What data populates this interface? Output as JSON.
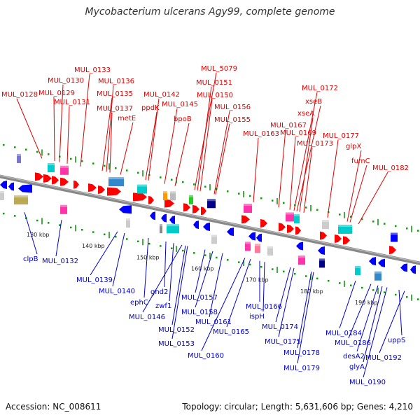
{
  "title": "Mycobacterium ulcerans Agy99, complete genome",
  "footer": {
    "accession": "Accession: NC_008611",
    "summary": "Topology: circular; Length: 5,631,606 bp; Genes: 4,210"
  },
  "colors": {
    "forward_label": "#dd0000",
    "reverse_label": "#0000cc",
    "backbone": "#888888",
    "tick": "#119911",
    "forward_arrow": "#ff0000",
    "reverse_arrow": "#0000ff"
  },
  "ticks": [
    "130 kbp",
    "140 kbp",
    "150 kbp",
    "160 kbp",
    "170 kbp",
    "180 kbp",
    "190 kbp"
  ],
  "forward_labels": [
    "MUL_0128",
    "MUL_0129",
    "MUL_0130",
    "MUL_0131",
    "MUL_0133",
    "MUL_0135",
    "MUL_0136",
    "MUL_0137",
    "metE",
    "MUL_0142",
    "ppdK",
    "MUL_0145",
    "bpoB",
    "MUL_5079",
    "MUL_0151",
    "MUL_0150",
    "MUL_0156",
    "MUL_0155",
    "MUL_0163",
    "MUL_0167",
    "MUL_0169",
    "MUL_0172",
    "xseB",
    "xseA",
    "MUL_0173",
    "MUL_0177",
    "glpX",
    "fumC",
    "MUL_0182"
  ],
  "reverse_labels": [
    "clpB",
    "MUL_0132",
    "MUL_0139",
    "MUL_0140",
    "ephC",
    "gnd2",
    "zwf1",
    "MUL_0146",
    "MUL_0157",
    "MUL_0158",
    "MUL_0152",
    "MUL_0161",
    "MUL_0153",
    "MUL_0160",
    "MUL_0166",
    "ispH",
    "MUL_0165",
    "MUL_0174",
    "MUL_0175",
    "MUL_0178",
    "MUL_0179",
    "MUL_0184",
    "MUL_0186",
    "desA2",
    "glyA",
    "uppS",
    "MUL_0192",
    "MUL_0190"
  ]
}
